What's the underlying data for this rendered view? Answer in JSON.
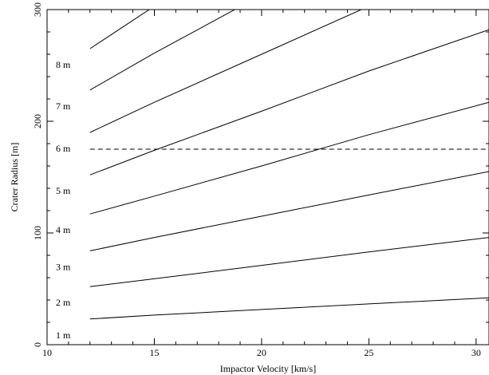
{
  "chart_data": {
    "type": "line",
    "title": "",
    "xlabel": "Impactor Velocity [km/s]",
    "ylabel": "Crater Radius [m]",
    "xlim": [
      10,
      30.6
    ],
    "ylim": [
      0,
      300
    ],
    "xticks": [
      10,
      15,
      20,
      25,
      30
    ],
    "yticks": [
      0,
      100,
      200,
      300
    ],
    "x_minor_step": 1,
    "y_minor_step": 20,
    "grid": false,
    "series": [
      {
        "name": "1 m",
        "x": [
          12,
          15,
          20,
          25,
          30.6
        ],
        "y": [
          23,
          26.5,
          31.5,
          36.5,
          42
        ]
      },
      {
        "name": "2 m",
        "x": [
          12,
          15,
          20,
          25,
          30.6
        ],
        "y": [
          52,
          59,
          71,
          83,
          96
        ]
      },
      {
        "name": "3 m",
        "x": [
          12,
          15,
          20,
          25,
          30.6
        ],
        "y": [
          84,
          96,
          115,
          134,
          155
        ]
      },
      {
        "name": "4 m",
        "x": [
          12,
          15,
          20,
          25,
          30.6
        ],
        "y": [
          117,
          133,
          160,
          188,
          217
        ]
      },
      {
        "name": "5 m",
        "x": [
          12,
          15,
          20,
          25,
          30.6
        ],
        "y": [
          152,
          174,
          209,
          245,
          282
        ]
      },
      {
        "name": "6 m",
        "x": [
          12,
          15,
          20,
          25,
          28
        ],
        "y": [
          190,
          217,
          260,
          303,
          330
        ]
      },
      {
        "name": "7 m",
        "x": [
          12,
          15,
          20,
          25
        ],
        "y": [
          228,
          261,
          313,
          365
        ]
      },
      {
        "name": "8 m",
        "x": [
          12,
          15,
          20
        ],
        "y": [
          265,
          303,
          365
        ]
      }
    ],
    "reference_line": {
      "y": 175,
      "style": "dashed"
    }
  }
}
